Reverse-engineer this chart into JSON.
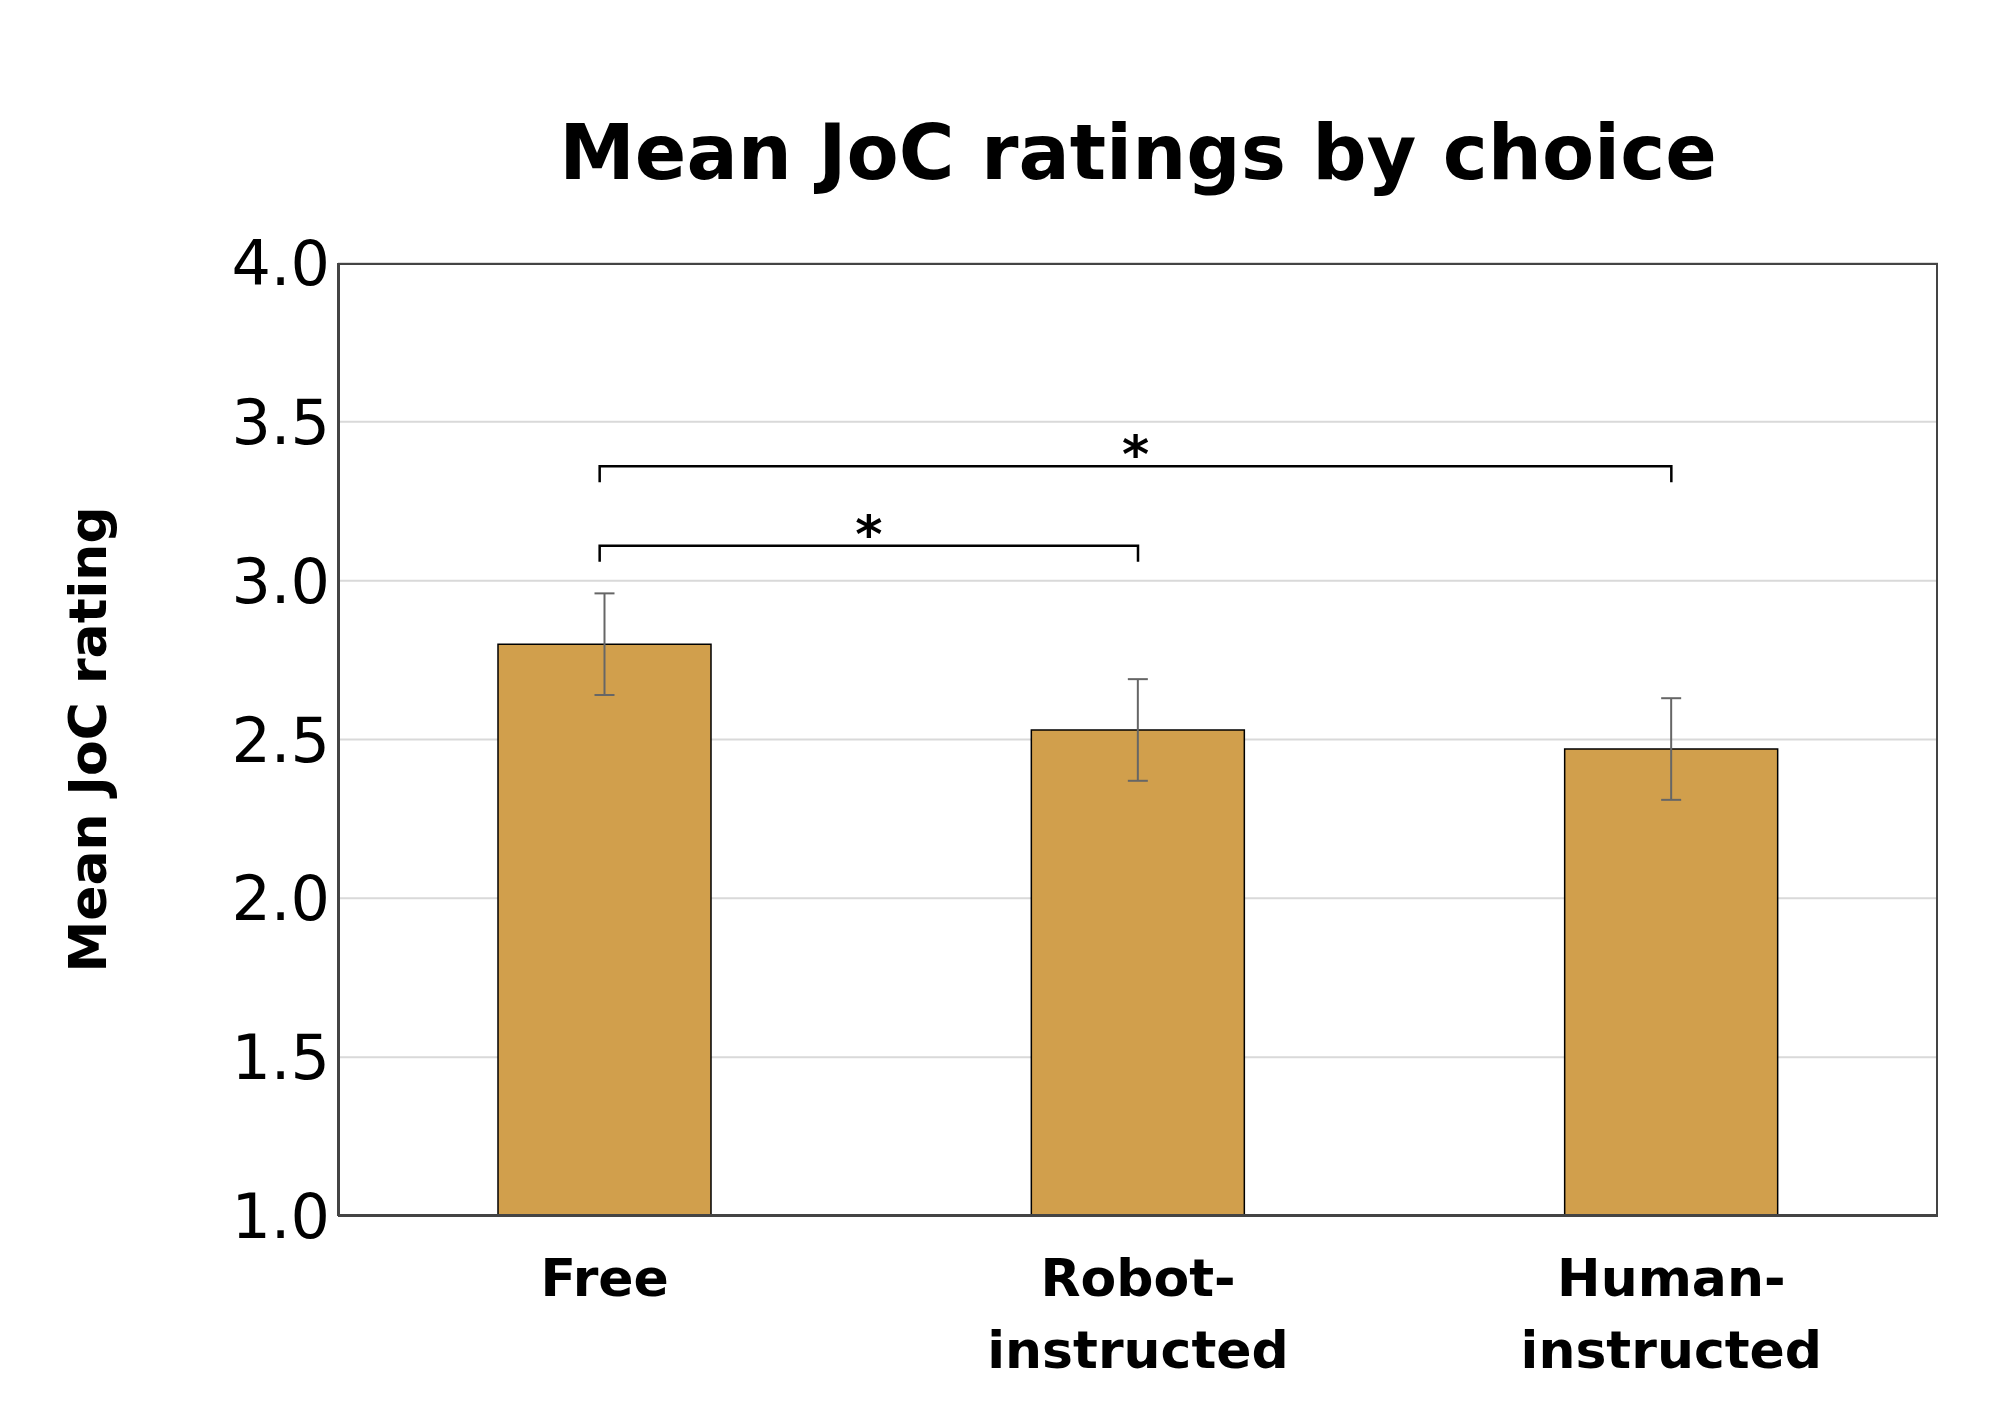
{
  "chart_data": {
    "type": "bar",
    "title": "Mean JoC ratings by choice",
    "ylabel": "Mean JoC rating",
    "categories": [
      "Free",
      "Robot-instructed",
      "Human-instructed"
    ],
    "values": [
      2.8,
      2.53,
      2.47
    ],
    "errors": [
      0.16,
      0.16,
      0.16
    ],
    "color": "#d19f4c",
    "ylim": [
      1,
      4
    ],
    "yticks": [
      {
        "value": 1,
        "label": "1.0"
      },
      {
        "value": 1.5,
        "label": "1.5"
      },
      {
        "value": 2,
        "label": "2.0"
      },
      {
        "value": 2.5,
        "label": "2.5"
      },
      {
        "value": 3,
        "label": "3.0"
      },
      {
        "value": 3.5,
        "label": "3.5"
      },
      {
        "value": 4,
        "label": "4.0"
      }
    ],
    "grid": "y",
    "annotations": [
      "*",
      "*"
    ]
  }
}
